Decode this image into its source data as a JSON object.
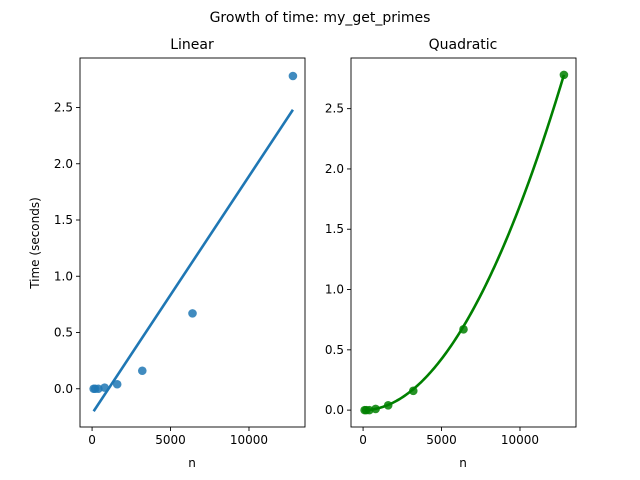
{
  "figure": {
    "suptitle": "Growth of time: my_get_primes"
  },
  "chart_data": [
    {
      "type": "scatter",
      "title": "Linear",
      "xlabel": "n",
      "ylabel": "Time (seconds)",
      "xlim": [
        -770,
        13570
      ],
      "ylim": [
        -0.34,
        2.94
      ],
      "xticks": [
        0,
        5000,
        10000
      ],
      "xtick_labels": [
        "0",
        "5000",
        "10000"
      ],
      "yticks": [
        0.0,
        0.5,
        1.0,
        1.5,
        2.0,
        2.5
      ],
      "ytick_labels": [
        "0.0",
        "0.5",
        "1.0",
        "1.5",
        "2.0",
        "2.5"
      ],
      "grid": false,
      "points": {
        "x": [
          100,
          200,
          400,
          800,
          1600,
          3200,
          6400,
          12800
        ],
        "y": [
          0.0,
          0.0,
          0.0,
          0.01,
          0.04,
          0.16,
          0.67,
          2.78
        ],
        "color": "#1f77b4"
      },
      "fit": {
        "kind": "linear",
        "x_range": [
          100,
          12800
        ],
        "y_range": [
          -0.2,
          2.48
        ],
        "color": "#1f77b4"
      }
    },
    {
      "type": "scatter",
      "title": "Quadratic",
      "xlabel": "n",
      "ylabel": "",
      "xlim": [
        -770,
        13570
      ],
      "ylim": [
        -0.14,
        2.92
      ],
      "xticks": [
        0,
        5000,
        10000
      ],
      "xtick_labels": [
        "0",
        "5000",
        "10000"
      ],
      "yticks": [
        0.0,
        0.5,
        1.0,
        1.5,
        2.0,
        2.5
      ],
      "ytick_labels": [
        "0.0",
        "0.5",
        "1.0",
        "1.5",
        "2.0",
        "2.5"
      ],
      "grid": false,
      "points": {
        "x": [
          100,
          200,
          400,
          800,
          1600,
          3200,
          6400,
          12800
        ],
        "y": [
          0.0,
          0.0,
          0.0,
          0.01,
          0.04,
          0.16,
          0.67,
          2.78
        ],
        "color": "#008000"
      },
      "fit": {
        "kind": "quadratic",
        "x_range": [
          100,
          12800
        ],
        "coef_a": 1.697e-08,
        "color": "#008000"
      }
    }
  ]
}
